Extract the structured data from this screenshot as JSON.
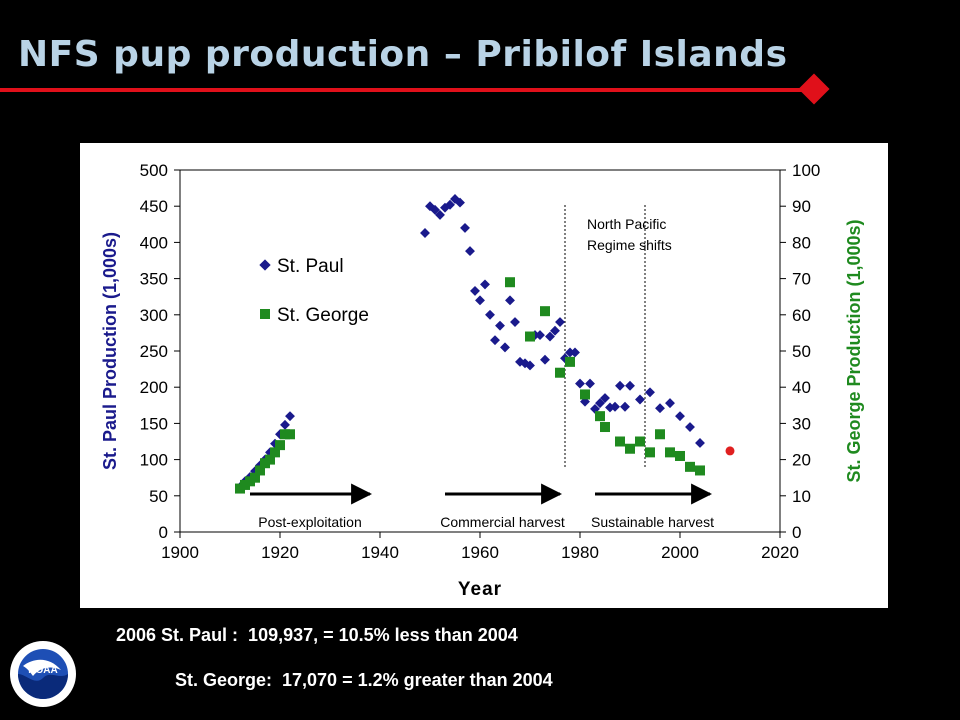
{
  "slide": {
    "title": "NFS pup production – Pribilof Islands",
    "note_1": "2006 St. Paul :  109,937, = 10.5% less than 2004",
    "note_2": "St. George:  17,070 = 1.2% greater than 2004",
    "logo_text": "NOAA"
  },
  "colors": {
    "background": "#000000",
    "title": "#b9d3e6",
    "accent": "#e0101a",
    "st_paul": "#1a1a8c",
    "st_george": "#1f8a1f",
    "highlight_point": "#e02020",
    "right_axis_label": "#1f8a1f",
    "left_axis_label": "#1a1a8c"
  },
  "chart_data": {
    "type": "scatter",
    "xlabel": "Year",
    "ylabel": "St. Paul Production (1,000s)",
    "y2label": "St. George Production (1,000s)",
    "xlim": [
      1900,
      2020
    ],
    "ylim": [
      0,
      500
    ],
    "y2lim": [
      0,
      100
    ],
    "x_ticks": [
      1900,
      1920,
      1940,
      1960,
      1980,
      2000,
      2020
    ],
    "y_ticks": [
      0,
      50,
      100,
      150,
      200,
      250,
      300,
      350,
      400,
      450,
      500
    ],
    "y2_ticks": [
      0,
      10,
      20,
      30,
      40,
      50,
      60,
      70,
      80,
      90,
      100
    ],
    "grid": false,
    "legend": {
      "position": "upper-left",
      "entries": [
        "St. Paul",
        "St. George"
      ]
    },
    "series": [
      {
        "name": "St. Paul",
        "axis": "left",
        "marker": "diamond",
        "points": [
          [
            1912,
            62
          ],
          [
            1913,
            70
          ],
          [
            1914,
            76
          ],
          [
            1915,
            84
          ],
          [
            1916,
            92
          ],
          [
            1917,
            100
          ],
          [
            1918,
            110
          ],
          [
            1919,
            122
          ],
          [
            1920,
            135
          ],
          [
            1921,
            148
          ],
          [
            1922,
            160
          ],
          [
            1949,
            413
          ],
          [
            1950,
            450
          ],
          [
            1951,
            445
          ],
          [
            1952,
            438
          ],
          [
            1953,
            448
          ],
          [
            1954,
            452
          ],
          [
            1955,
            460
          ],
          [
            1956,
            455
          ],
          [
            1957,
            420
          ],
          [
            1958,
            388
          ],
          [
            1959,
            333
          ],
          [
            1960,
            320
          ],
          [
            1961,
            342
          ],
          [
            1962,
            300
          ],
          [
            1963,
            265
          ],
          [
            1964,
            285
          ],
          [
            1965,
            255
          ],
          [
            1966,
            320
          ],
          [
            1967,
            290
          ],
          [
            1968,
            235
          ],
          [
            1969,
            233
          ],
          [
            1970,
            230
          ],
          [
            1971,
            272
          ],
          [
            1972,
            272
          ],
          [
            1973,
            238
          ],
          [
            1974,
            270
          ],
          [
            1975,
            278
          ],
          [
            1976,
            290
          ],
          [
            1977,
            240
          ],
          [
            1978,
            248
          ],
          [
            1979,
            248
          ],
          [
            1980,
            205
          ],
          [
            1981,
            180
          ],
          [
            1982,
            205
          ],
          [
            1983,
            170
          ],
          [
            1984,
            178
          ],
          [
            1985,
            185
          ],
          [
            1986,
            172
          ],
          [
            1987,
            173
          ],
          [
            1988,
            202
          ],
          [
            1989,
            173
          ],
          [
            1990,
            202
          ],
          [
            1992,
            183
          ],
          [
            1994,
            193
          ],
          [
            1996,
            171
          ],
          [
            1998,
            178
          ],
          [
            2000,
            160
          ],
          [
            2002,
            145
          ],
          [
            2004,
            123
          ]
        ]
      },
      {
        "name": "St. George",
        "axis": "right",
        "marker": "square",
        "points": [
          [
            1912,
            12
          ],
          [
            1913,
            13
          ],
          [
            1914,
            14
          ],
          [
            1915,
            15
          ],
          [
            1916,
            17
          ],
          [
            1917,
            19
          ],
          [
            1918,
            20
          ],
          [
            1919,
            22
          ],
          [
            1920,
            24
          ],
          [
            1921,
            27
          ],
          [
            1922,
            27
          ],
          [
            1966,
            69
          ],
          [
            1970,
            54
          ],
          [
            1973,
            61
          ],
          [
            1976,
            44
          ],
          [
            1978,
            47
          ],
          [
            1981,
            38
          ],
          [
            1984,
            32
          ],
          [
            1985,
            29
          ],
          [
            1988,
            25
          ],
          [
            1990,
            23
          ],
          [
            1992,
            25
          ],
          [
            1994,
            22
          ],
          [
            1996,
            27
          ],
          [
            1998,
            22
          ],
          [
            2000,
            21
          ],
          [
            2002,
            18
          ],
          [
            2004,
            17
          ]
        ]
      },
      {
        "name": "",
        "axis": "left",
        "marker": "circle",
        "points": [
          [
            2010,
            112
          ]
        ]
      }
    ],
    "vlines": [
      1977,
      1993
    ],
    "annotations": {
      "regime": "North Pacific\nRegime shifts",
      "periods": [
        {
          "label": "Post-exploitation",
          "arrow_from": 1914,
          "arrow_to": 1938
        },
        {
          "label": "Commercial harvest",
          "arrow_from": 1953,
          "arrow_to": 1976
        },
        {
          "label": "Sustainable harvest",
          "arrow_from": 1983,
          "arrow_to": 2006
        }
      ]
    }
  }
}
